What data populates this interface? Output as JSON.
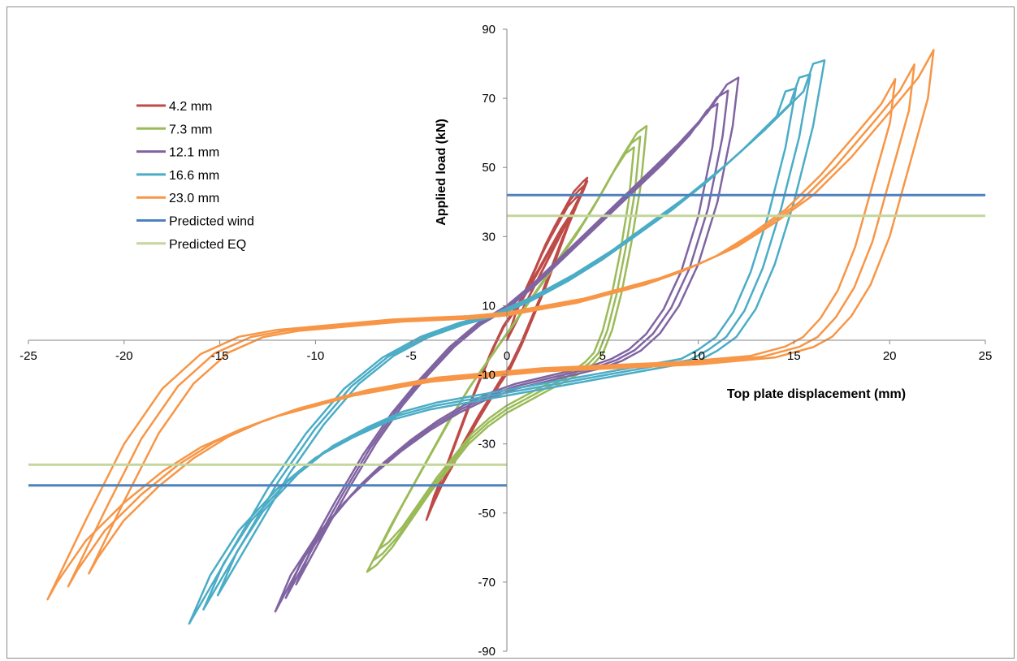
{
  "chart_data": {
    "type": "line",
    "title": "",
    "xlabel": "Top plate displacement (mm)",
    "ylabel": "Applied load (kN)",
    "xlim": [
      -25,
      25
    ],
    "ylim": [
      -90,
      90
    ],
    "x_ticks": [
      -25,
      -20,
      -15,
      -10,
      -5,
      0,
      5,
      10,
      15,
      20,
      25
    ],
    "y_ticks": [
      -90,
      -70,
      -50,
      -30,
      -10,
      10,
      30,
      50,
      70,
      90
    ],
    "grid": false,
    "legend_position": "top-left",
    "series": [
      {
        "name": "4.2 mm",
        "color": "#be4b48",
        "cycles": 3,
        "x": [
          0.0,
          0.5,
          1.0,
          1.5,
          2.0,
          2.5,
          3.0,
          3.5,
          4.0,
          4.2,
          3.8,
          3.2,
          2.6,
          2.0,
          1.4,
          0.8,
          0.2,
          -0.4,
          -1.0,
          -1.6,
          -2.2,
          -2.8,
          -3.4,
          -3.9,
          -4.2,
          -3.8,
          -3.2,
          -2.6,
          -2.0,
          -1.4,
          -0.8,
          -0.2,
          0.4,
          1.0,
          1.6,
          2.2,
          2.8,
          3.4,
          3.9,
          4.2
        ],
        "y": [
          0.0,
          8.5,
          15.0,
          21.0,
          27.5,
          33.0,
          38.0,
          43.0,
          46.0,
          47.0,
          41.0,
          33.0,
          24.0,
          15.0,
          7.0,
          -1.0,
          -8.0,
          -13.0,
          -18.5,
          -24.0,
          -30.0,
          -36.0,
          -42.0,
          -48.0,
          -52.0,
          -45.0,
          -37.0,
          -28.0,
          -19.0,
          -11.0,
          -3.0,
          4.0,
          9.0,
          14.0,
          20.0,
          26.0,
          32.0,
          37.0,
          42.0,
          46.0
        ]
      },
      {
        "name": "7.3 mm",
        "color": "#9bbb59",
        "cycles": 3,
        "x": [
          -7.3,
          -6.0,
          -5.0,
          -4.0,
          -3.0,
          -2.0,
          -1.0,
          0.0,
          1.0,
          2.0,
          3.0,
          4.0,
          5.0,
          6.0,
          6.8,
          7.3,
          7.0,
          6.5,
          6.0,
          5.5,
          5.0,
          4.5,
          4.0,
          3.0,
          2.0,
          1.0,
          0.0,
          -1.0,
          -2.0,
          -3.0,
          -4.0,
          -5.0,
          -6.0,
          -6.8,
          -7.3
        ],
        "y": [
          -67.0,
          -53.0,
          -43.0,
          -33.0,
          -23.0,
          -14.0,
          -6.0,
          2.0,
          10.0,
          18.0,
          26.0,
          34.0,
          43.0,
          53.0,
          60.0,
          62.0,
          45.0,
          28.0,
          14.0,
          3.0,
          -4.0,
          -7.0,
          -9.0,
          -12.0,
          -15.0,
          -18.0,
          -21.0,
          -25.0,
          -30.0,
          -37.0,
          -44.0,
          -52.0,
          -60.0,
          -65.0,
          -67.0
        ]
      },
      {
        "name": "12.1 mm",
        "color": "#8064a2",
        "cycles": 3,
        "x": [
          -12.1,
          -10.5,
          -9.0,
          -7.5,
          -6.0,
          -4.5,
          -3.0,
          -1.5,
          0.0,
          1.5,
          3.0,
          4.5,
          6.0,
          7.5,
          9.0,
          10.5,
          11.5,
          12.1,
          11.8,
          11.0,
          10.0,
          9.0,
          8.0,
          7.0,
          6.0,
          5.0,
          3.5,
          2.0,
          0.5,
          -1.0,
          -2.5,
          -4.0,
          -5.5,
          -7.0,
          -8.5,
          -10.0,
          -11.3,
          -12.1
        ],
        "y": [
          -78.5,
          -62.0,
          -47.0,
          -33.0,
          -21.0,
          -11.0,
          -2.0,
          5.0,
          10.0,
          17.0,
          25.0,
          33.0,
          41.0,
          49.0,
          57.0,
          66.0,
          74.0,
          76.0,
          62.0,
          40.0,
          22.0,
          10.0,
          2.0,
          -3.0,
          -6.0,
          -8.0,
          -10.0,
          -12.0,
          -14.0,
          -17.0,
          -21.0,
          -26.0,
          -32.0,
          -39.0,
          -47.0,
          -57.0,
          -68.0,
          -78.5
        ]
      },
      {
        "name": "16.6 mm",
        "color": "#4bacc6",
        "cycles": 3,
        "x": [
          -16.6,
          -14.5,
          -12.5,
          -10.5,
          -8.5,
          -6.5,
          -4.5,
          -2.5,
          -0.5,
          1.5,
          3.5,
          5.5,
          7.5,
          9.5,
          11.5,
          13.5,
          15.5,
          16.0,
          16.6,
          16.0,
          15.0,
          14.0,
          13.0,
          12.0,
          11.0,
          10.0,
          8.0,
          6.0,
          4.0,
          2.0,
          0.0,
          -2.0,
          -4.0,
          -6.0,
          -8.0,
          -10.0,
          -12.0,
          -14.0,
          -15.5,
          -16.6
        ],
        "y": [
          -82.0,
          -62.0,
          -43.0,
          -27.0,
          -14.0,
          -5.0,
          1.0,
          5.0,
          8.0,
          13.0,
          19.0,
          26.0,
          34.0,
          42.0,
          51.0,
          61.0,
          72.0,
          80.0,
          81.0,
          62.0,
          40.0,
          22.0,
          9.0,
          1.0,
          -3.0,
          -6.0,
          -8.0,
          -10.0,
          -12.0,
          -14.0,
          -16.0,
          -18.0,
          -20.0,
          -23.0,
          -28.0,
          -34.0,
          -43.0,
          -55.0,
          -68.0,
          -82.0
        ]
      },
      {
        "name": "23.0 mm",
        "color": "#f79646",
        "cycles": 3,
        "x": [
          -24.0,
          -22.0,
          -20.0,
          -18.0,
          -16.0,
          -14.0,
          -12.0,
          -10.0,
          -8.0,
          -6.0,
          -4.0,
          -2.0,
          0.0,
          2.0,
          4.0,
          6.0,
          8.0,
          10.0,
          12.0,
          14.0,
          16.0,
          18.0,
          20.0,
          21.5,
          22.3,
          22.0,
          21.0,
          20.0,
          19.0,
          18.0,
          17.0,
          16.0,
          14.0,
          12.0,
          10.0,
          8.0,
          6.0,
          4.0,
          2.0,
          0.0,
          -2.0,
          -4.0,
          -6.0,
          -8.0,
          -10.0,
          -12.0,
          -14.0,
          -16.0,
          -18.0,
          -20.0,
          -22.0,
          -23.5,
          -24.0
        ],
        "y": [
          -75.0,
          -52.0,
          -30.0,
          -14.0,
          -4.0,
          1.0,
          3.0,
          4.0,
          5.0,
          6.0,
          6.5,
          7.0,
          8.0,
          10.0,
          12.0,
          15.0,
          18.0,
          22.0,
          27.0,
          34.0,
          42.0,
          53.0,
          66.0,
          76.0,
          84.0,
          70.0,
          50.0,
          30.0,
          16.0,
          7.0,
          1.0,
          -2.0,
          -5.0,
          -6.0,
          -7.0,
          -7.5,
          -8.0,
          -8.5,
          -9.0,
          -10.0,
          -11.0,
          -12.0,
          -14.0,
          -16.0,
          -19.0,
          -22.0,
          -26.0,
          -31.0,
          -38.0,
          -47.0,
          -58.0,
          -70.0,
          -75.0
        ]
      },
      {
        "name": "Predicted wind",
        "color": "#4f81bd",
        "type": "hline",
        "segments": [
          {
            "x": [
              0,
              25
            ],
            "y": 42
          },
          {
            "x": [
              -25,
              0
            ],
            "y": -42
          }
        ]
      },
      {
        "name": "Predicted EQ",
        "color": "#c3d69b",
        "type": "hline",
        "segments": [
          {
            "x": [
              0,
              25
            ],
            "y": 36
          },
          {
            "x": [
              -25,
              0
            ],
            "y": -36
          }
        ]
      }
    ]
  }
}
